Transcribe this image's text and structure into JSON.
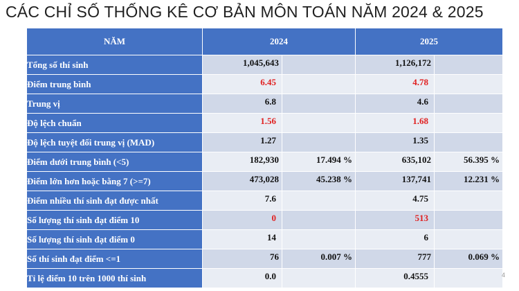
{
  "title": "CÁC CHỈ SỐ THỐNG KÊ CƠ BẢN MÔN TOÁN NĂM 2024 & 2025",
  "header": {
    "label_col": "NĂM",
    "year1": "2024",
    "year2": "2025"
  },
  "rows": [
    {
      "label": "Tổng số thí sinh",
      "v2024": "1,045,643",
      "p2024": "",
      "v2025": "1,126,172",
      "p2025": ""
    },
    {
      "label": "Điểm trung bình",
      "v2024": "6.45",
      "p2024": "",
      "v2025": "4.78",
      "p2025": ""
    },
    {
      "label": "Trung vị",
      "v2024": "6.8",
      "p2024": "",
      "v2025": "4.6",
      "p2025": ""
    },
    {
      "label": "Độ lệch chuẩn",
      "v2024": "1.56",
      "p2024": "",
      "v2025": "1.68",
      "p2025": ""
    },
    {
      "label": "Độ lệch tuyệt đối trung vị (MAD)",
      "v2024": "1.27",
      "p2024": "",
      "v2025": "1.35",
      "p2025": ""
    },
    {
      "label": "Điểm dưới trung bình (<5)",
      "v2024": "182,930",
      "p2024": "17.494 %",
      "v2025": "635,102",
      "p2025": "56.395 %"
    },
    {
      "label": "Điểm lớn hơn hoặc bằng 7 (>=7)",
      "v2024": "473,028",
      "p2024": "45.238 %",
      "v2025": "137,741",
      "p2025": "12.231 %"
    },
    {
      "label": "Điểm nhiều thí sinh đạt được nhất",
      "v2024": "7.6",
      "p2024": "",
      "v2025": "4.75",
      "p2025": ""
    },
    {
      "label": "Số lượng thí sinh đạt điểm 10",
      "v2024": "0",
      "p2024": "",
      "v2025": "513",
      "p2025": ""
    },
    {
      "label": "Số lượng thí sinh đạt điểm 0",
      "v2024": "14",
      "p2024": "",
      "v2025": "6",
      "p2025": ""
    },
    {
      "label": "Số thí sinh đạt điểm <=1",
      "v2024": "76",
      "p2024": "0.007 %",
      "v2025": "777",
      "p2025": "0.069 %"
    },
    {
      "label": "Tỉ lệ điểm 10 trên 1000 thí sinh",
      "v2024": "0.0",
      "p2024": "",
      "v2025": "0.4555",
      "p2025": ""
    }
  ],
  "colors": {
    "header_bg": "#4472c4",
    "row_odd": "#d0d8e8",
    "row_even": "#e9edf4",
    "highlight": "#e02020"
  },
  "page_number": "4"
}
